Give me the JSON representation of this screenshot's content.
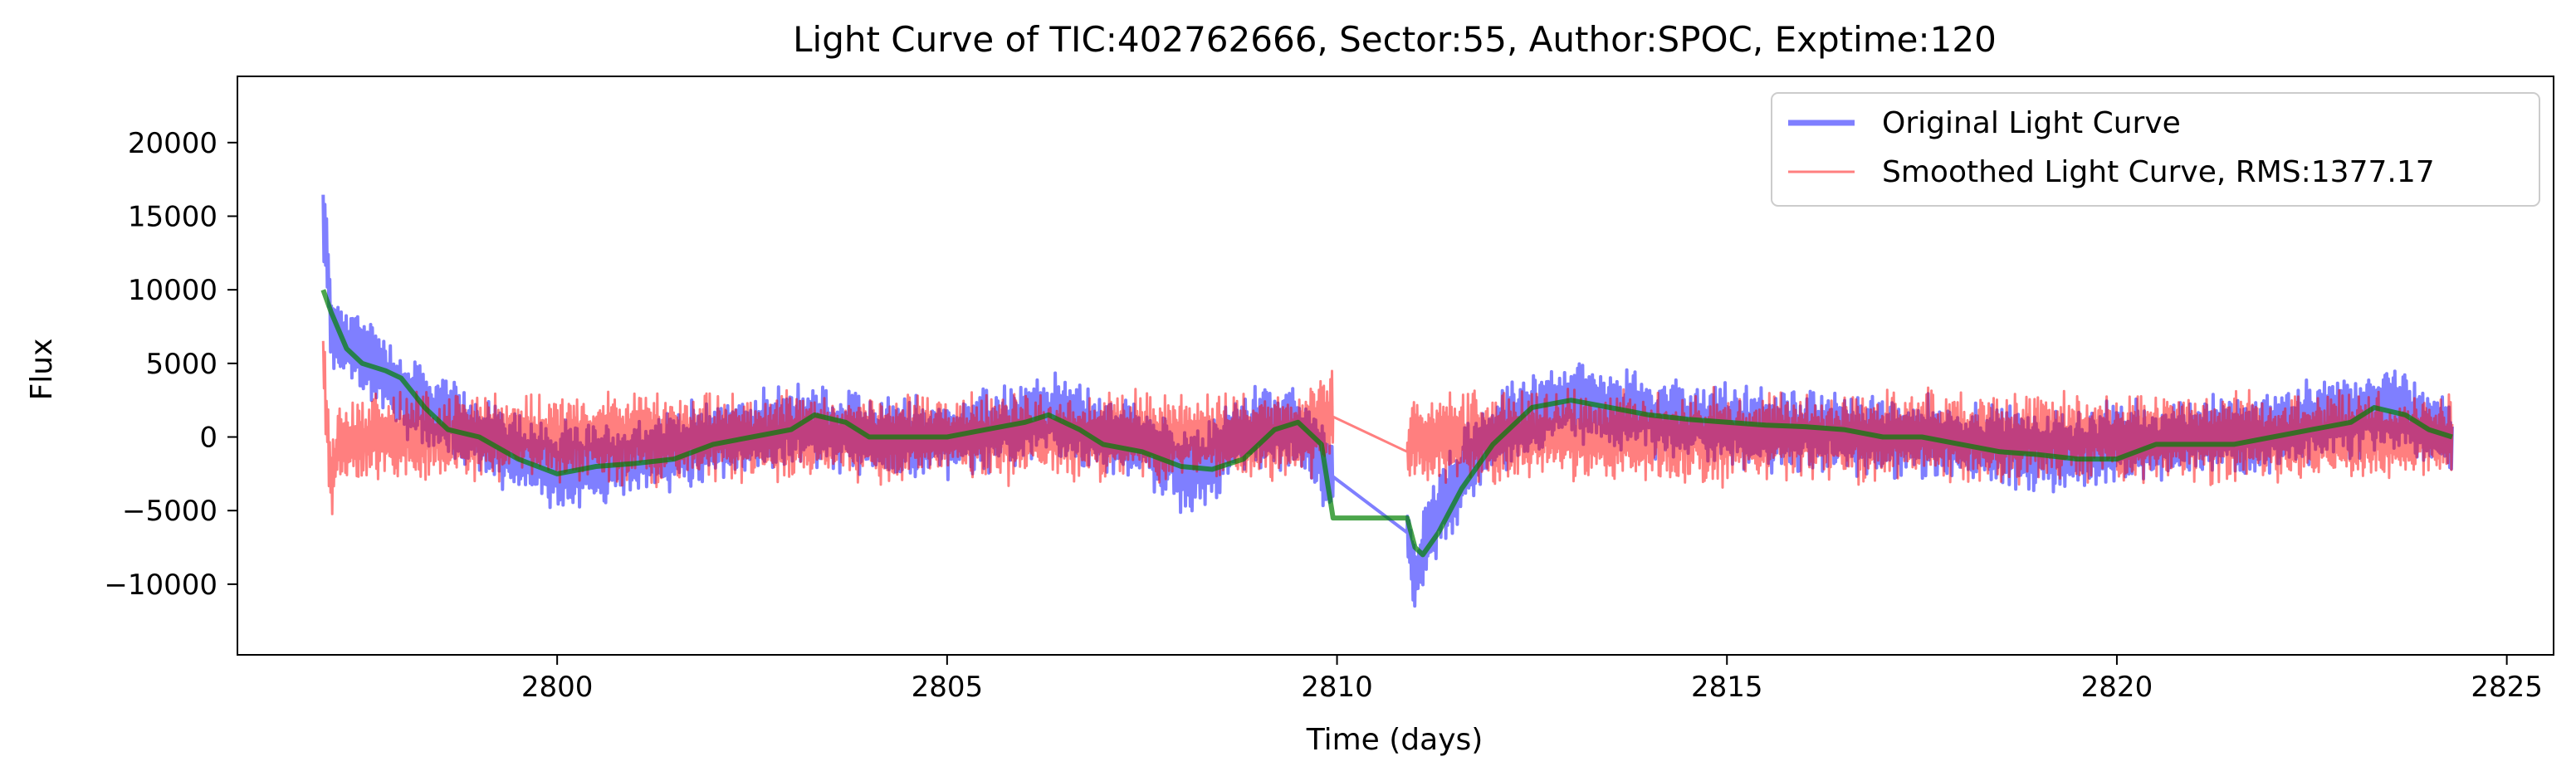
{
  "chart_data": {
    "type": "line",
    "title": "Light Curve of TIC:402762666, Sector:55, Author:SPOC, Exptime:120",
    "xlabel": "Time (days)",
    "ylabel": "Flux",
    "xlim": [
      2795.9,
      2825.6
    ],
    "ylim": [
      -14800,
      24500
    ],
    "xticks": [
      2800,
      2805,
      2810,
      2815,
      2820,
      2825
    ],
    "yticks": [
      -10000,
      -5000,
      0,
      5000,
      10000,
      15000,
      20000
    ],
    "ytick_labels": [
      "−10000",
      "−5000",
      "0",
      "5000",
      "10000",
      "15000",
      "20000"
    ],
    "grid": false,
    "legend_position": "top-right",
    "series": [
      {
        "name": "Original Light Curve",
        "color": "#0000ff",
        "opacity": 0.5,
        "style": "noisy-band",
        "noise_amplitude": 2200,
        "x": [
          2797.0,
          2797.05,
          2797.1,
          2797.2,
          2797.4,
          2797.7,
          2798.0,
          2798.5,
          2799.0,
          2799.5,
          2800.0,
          2800.5,
          2801.0,
          2801.5,
          2802.0,
          2802.5,
          2803.0,
          2803.5,
          2804.0,
          2804.5,
          2805.0,
          2805.5,
          2806.0,
          2806.5,
          2807.0,
          2807.5,
          2807.9,
          2808.0,
          2808.3,
          2808.7,
          2809.0,
          2809.4,
          2809.6,
          2809.9,
          2810.9,
          2811.0,
          2811.1,
          2811.3,
          2811.6,
          2812.0,
          2812.5,
          2813.0,
          2813.5,
          2814.0,
          2814.5,
          2815.0,
          2815.5,
          2816.0,
          2816.5,
          2817.0,
          2817.5,
          2818.0,
          2818.5,
          2819.0,
          2819.5,
          2820.0,
          2820.5,
          2821.0,
          2821.5,
          2822.0,
          2822.5,
          2823.0,
          2823.5,
          2824.0,
          2824.3
        ],
        "y": [
          15000,
          12000,
          8000,
          6500,
          6000,
          5000,
          3000,
          1500,
          0,
          -1000,
          -2000,
          -1800,
          -1500,
          -1000,
          0,
          0,
          1000,
          500,
          0,
          0,
          0,
          500,
          1000,
          1500,
          0,
          -500,
          -1500,
          -2500,
          -2000,
          0,
          500,
          1000,
          0,
          -2500,
          -6500,
          -9500,
          -8000,
          -5000,
          -2500,
          0,
          1500,
          2500,
          1800,
          1500,
          1000,
          800,
          500,
          500,
          500,
          0,
          0,
          -500,
          -500,
          -1000,
          -1000,
          -500,
          -500,
          0,
          0,
          500,
          1000,
          1500,
          2000,
          500,
          0
        ]
      },
      {
        "name": "Smoothed Light Curve, RMS:1377.17",
        "color": "#ff0000",
        "opacity": 0.5,
        "style": "noisy-band",
        "noise_amplitude": 2400,
        "x": [
          2797.0,
          2797.1,
          2797.2,
          2797.4,
          2797.7,
          2798.0,
          2798.5,
          2799.0,
          2799.5,
          2800.0,
          2800.5,
          2801.0,
          2801.5,
          2802.0,
          2802.5,
          2803.0,
          2803.5,
          2804.0,
          2804.5,
          2805.0,
          2805.5,
          2806.0,
          2806.5,
          2807.0,
          2807.5,
          2808.0,
          2808.5,
          2809.0,
          2809.5,
          2809.9,
          2810.9,
          2811.0,
          2811.3,
          2811.6,
          2812.0,
          2812.5,
          2813.0,
          2813.5,
          2814.0,
          2814.5,
          2815.0,
          2815.5,
          2816.0,
          2816.5,
          2817.0,
          2817.5,
          2818.0,
          2818.5,
          2819.0,
          2819.5,
          2820.0,
          2820.5,
          2821.0,
          2821.5,
          2822.0,
          2822.5,
          2823.0,
          2823.5,
          2824.0,
          2824.3
        ],
        "y": [
          5000,
          -3000,
          0,
          -500,
          0,
          0,
          0,
          0,
          0,
          0,
          0,
          0,
          0,
          0,
          0,
          0,
          0,
          0,
          0,
          0,
          0,
          0,
          0,
          0,
          0,
          0,
          0,
          0,
          0,
          1500,
          -1000,
          0,
          0,
          0,
          0,
          0,
          0,
          0,
          0,
          0,
          0,
          0,
          0,
          0,
          0,
          0,
          0,
          0,
          0,
          0,
          0,
          0,
          0,
          0,
          0,
          0,
          0,
          0,
          0,
          0
        ]
      },
      {
        "color": "#008000",
        "opacity": 0.7,
        "style": "line",
        "x": [
          2797.0,
          2797.1,
          2797.3,
          2797.5,
          2797.8,
          2798.0,
          2798.3,
          2798.6,
          2799.0,
          2799.5,
          2800.0,
          2800.5,
          2801.0,
          2801.5,
          2802.0,
          2802.5,
          2803.0,
          2803.3,
          2803.7,
          2804.0,
          2804.5,
          2805.0,
          2805.5,
          2806.0,
          2806.3,
          2806.7,
          2807.0,
          2807.5,
          2808.0,
          2808.4,
          2808.8,
          2809.2,
          2809.5,
          2809.8,
          2809.95,
          2810.9,
          2811.0,
          2811.1,
          2811.3,
          2811.6,
          2812.0,
          2812.5,
          2813.0,
          2813.5,
          2814.0,
          2814.5,
          2815.0,
          2815.5,
          2816.0,
          2816.5,
          2817.0,
          2817.5,
          2818.0,
          2818.5,
          2819.0,
          2819.5,
          2820.0,
          2820.5,
          2821.0,
          2821.5,
          2822.0,
          2822.5,
          2823.0,
          2823.3,
          2823.7,
          2824.0,
          2824.3
        ],
        "y": [
          10000,
          8500,
          6000,
          5000,
          4500,
          4000,
          2000,
          500,
          0,
          -1500,
          -2500,
          -2000,
          -1800,
          -1500,
          -500,
          0,
          500,
          1500,
          1000,
          0,
          0,
          0,
          500,
          1000,
          1500,
          500,
          -500,
          -1000,
          -2000,
          -2200,
          -1500,
          500,
          1000,
          -500,
          -5500,
          -5500,
          -7500,
          -8000,
          -6500,
          -3500,
          -500,
          2000,
          2500,
          2000,
          1500,
          1200,
          1000,
          800,
          700,
          500,
          0,
          0,
          -500,
          -1000,
          -1200,
          -1500,
          -1500,
          -500,
          -500,
          -500,
          0,
          500,
          1000,
          2000,
          1500,
          500,
          0
        ]
      }
    ]
  }
}
